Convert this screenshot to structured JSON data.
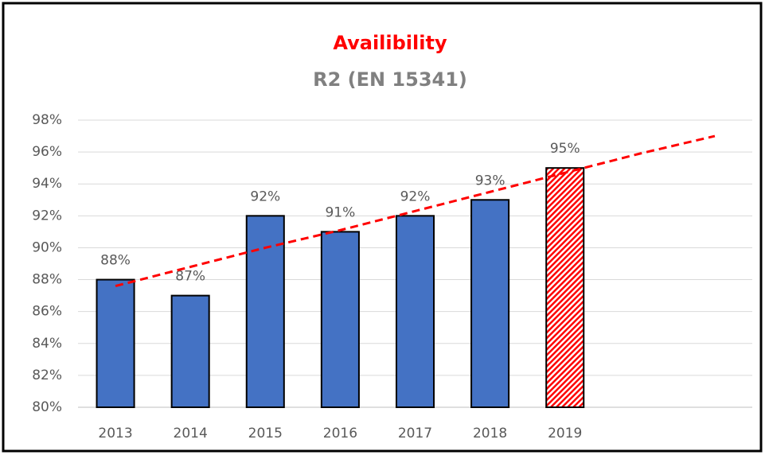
{
  "chart_data": {
    "type": "bar",
    "title": "Availibility",
    "subtitle": "R2 (EN 15341)",
    "categories": [
      "2013",
      "2014",
      "2015",
      "2016",
      "2017",
      "2018",
      "2019",
      null,
      null
    ],
    "values": [
      88,
      87,
      92,
      91,
      92,
      93,
      95,
      null,
      null
    ],
    "value_labels": [
      "88%",
      "87%",
      "92%",
      "91%",
      "92%",
      "93%",
      "95%",
      null,
      null
    ],
    "colors": [
      "#4472c4",
      "#4472c4",
      "#4472c4",
      "#4472c4",
      "#4472c4",
      "#4472c4",
      "#ff0000",
      null,
      null
    ],
    "fill_styles": [
      "solid",
      "solid",
      "solid",
      "solid",
      "solid",
      "solid",
      "hatched",
      null,
      null
    ],
    "trendline": {
      "color": "#ff0000",
      "values": [
        87.6,
        88.8,
        90.0,
        91.1,
        92.3,
        93.5,
        94.7,
        95.9,
        97.0
      ]
    },
    "ylim": [
      80,
      98
    ],
    "yticks": [
      {
        "value": 80,
        "label": "80%"
      },
      {
        "value": 82,
        "label": "82%"
      },
      {
        "value": 84,
        "label": "84%"
      },
      {
        "value": 86,
        "label": "86%"
      },
      {
        "value": 88,
        "label": "88%"
      },
      {
        "value": 90,
        "label": "90%"
      },
      {
        "value": 92,
        "label": "92%"
      },
      {
        "value": 94,
        "label": "94%"
      },
      {
        "value": 96,
        "label": "96%"
      },
      {
        "value": 98,
        "label": "98%"
      }
    ],
    "grid": true
  }
}
